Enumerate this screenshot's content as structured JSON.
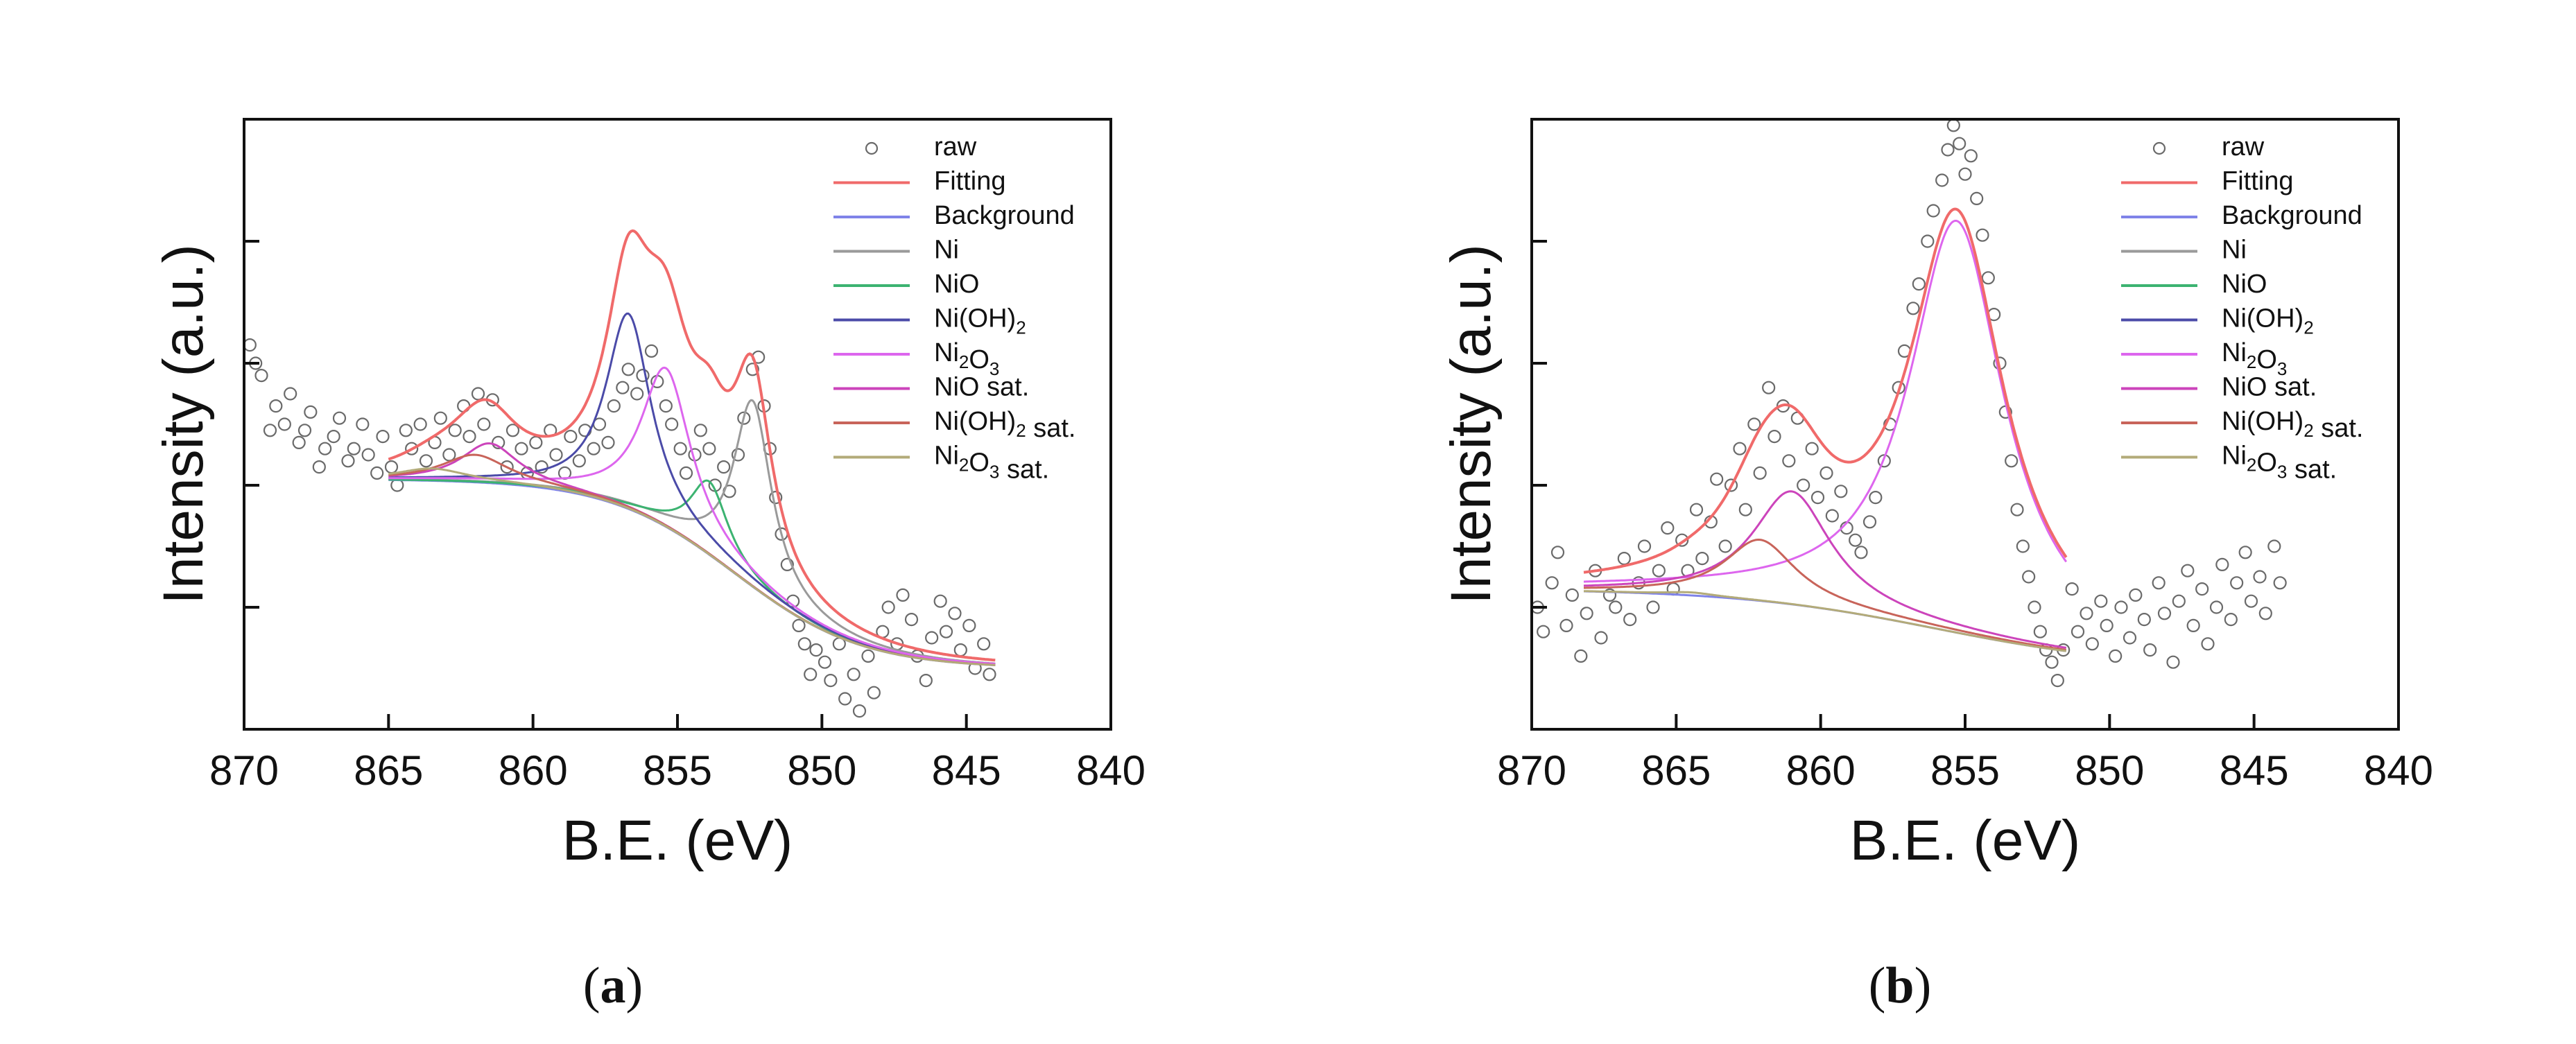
{
  "colors": {
    "axis": "#111111",
    "raw": "#6a6a6a",
    "fitting": "#f06a6a",
    "background": "#7f83e8",
    "ni": "#9a9a9a",
    "nio": "#3cb371",
    "nioh2": "#4b4ba8",
    "ni2o3": "#dd66ee",
    "nio_sat": "#cc44bb",
    "nioh2_sat": "#c8645a",
    "ni2o3_sat": "#b3ab79"
  },
  "chart_data": [
    {
      "panel_label": "a",
      "type": "line",
      "title": "",
      "xlabel": "B.E. (eV)",
      "ylabel": "Intensity (a.u.)",
      "xlim": [
        870,
        840
      ],
      "ylim": [
        0,
        10
      ],
      "xticks": [
        "870",
        "865",
        "860",
        "855",
        "850",
        "845",
        "840"
      ],
      "yticks": [
        2.0,
        4.0,
        6.0,
        8.0
      ],
      "yticks_labeled": false,
      "legend": {
        "position": "top-right",
        "entries": [
          {
            "label": "raw",
            "key": "raw",
            "kind": "marker"
          },
          {
            "label": "Fitting",
            "key": "fitting",
            "kind": "line"
          },
          {
            "label": "Background",
            "key": "background",
            "kind": "line"
          },
          {
            "label": "Ni",
            "key": "ni",
            "kind": "line"
          },
          {
            "label": "NiO",
            "key": "nio",
            "kind": "line"
          },
          {
            "label": "Ni(OH)",
            "sub": "2",
            "after": "",
            "key": "nioh2",
            "kind": "line"
          },
          {
            "label": "Ni",
            "sub": "2",
            "after": "O",
            "sub2": "3",
            "after2": "",
            "key": "ni2o3",
            "kind": "line"
          },
          {
            "label": "NiO sat.",
            "key": "nio_sat",
            "kind": "line"
          },
          {
            "label": "Ni(OH)",
            "sub": "2",
            "after": " sat.",
            "key": "nioh2_sat",
            "kind": "line"
          },
          {
            "label": "Ni",
            "sub": "2",
            "after": "O",
            "sub2": "3",
            "after2": " sat.",
            "key": "ni2o3_sat",
            "kind": "line"
          }
        ]
      },
      "fit_range": [
        865,
        844
      ],
      "background": {
        "type": "shirley",
        "high": 4.1,
        "low": 1.0,
        "center": 853.0,
        "width": 2.2
      },
      "components": [
        {
          "key": "ni",
          "center": 852.4,
          "height": 3.05,
          "fwhm": 1.6
        },
        {
          "key": "nio",
          "center": 853.9,
          "height": 1.2,
          "fwhm": 1.6
        },
        {
          "key": "nioh2",
          "center": 856.7,
          "height": 3.2,
          "fwhm": 1.9
        },
        {
          "key": "ni2o3",
          "center": 855.4,
          "height": 2.6,
          "fwhm": 2.1
        },
        {
          "key": "nio_sat",
          "center": 861.5,
          "height": 0.65,
          "fwhm": 2.4
        },
        {
          "key": "nioh2_sat",
          "center": 862.0,
          "height": 0.45,
          "fwhm": 2.8
        },
        {
          "key": "ni2o3_sat",
          "center": 863.5,
          "height": 0.2,
          "fwhm": 3.0
        }
      ],
      "raw_points": [
        [
          869.8,
          6.3
        ],
        [
          869.6,
          6.0
        ],
        [
          869.4,
          5.8
        ],
        [
          869.1,
          4.9
        ],
        [
          868.9,
          5.3
        ],
        [
          868.6,
          5.0
        ],
        [
          868.4,
          5.5
        ],
        [
          868.1,
          4.7
        ],
        [
          867.9,
          4.9
        ],
        [
          867.7,
          5.2
        ],
        [
          867.4,
          4.3
        ],
        [
          867.2,
          4.6
        ],
        [
          866.9,
          4.8
        ],
        [
          866.7,
          5.1
        ],
        [
          866.4,
          4.4
        ],
        [
          866.2,
          4.6
        ],
        [
          865.9,
          5.0
        ],
        [
          865.7,
          4.5
        ],
        [
          865.4,
          4.2
        ],
        [
          865.2,
          4.8
        ],
        [
          864.9,
          4.3
        ],
        [
          864.7,
          4.0
        ],
        [
          864.4,
          4.9
        ],
        [
          864.2,
          4.6
        ],
        [
          863.9,
          5.0
        ],
        [
          863.7,
          4.4
        ],
        [
          863.4,
          4.7
        ],
        [
          863.2,
          5.1
        ],
        [
          862.9,
          4.5
        ],
        [
          862.7,
          4.9
        ],
        [
          862.4,
          5.3
        ],
        [
          862.2,
          4.8
        ],
        [
          861.9,
          5.5
        ],
        [
          861.7,
          5.0
        ],
        [
          861.4,
          5.4
        ],
        [
          861.2,
          4.7
        ],
        [
          860.9,
          4.3
        ],
        [
          860.7,
          4.9
        ],
        [
          860.4,
          4.6
        ],
        [
          860.2,
          4.2
        ],
        [
          859.9,
          4.7
        ],
        [
          859.7,
          4.3
        ],
        [
          859.4,
          4.9
        ],
        [
          859.2,
          4.5
        ],
        [
          858.9,
          4.2
        ],
        [
          858.7,
          4.8
        ],
        [
          858.4,
          4.4
        ],
        [
          858.2,
          4.9
        ],
        [
          857.9,
          4.6
        ],
        [
          857.7,
          5.0
        ],
        [
          857.4,
          4.7
        ],
        [
          857.2,
          5.3
        ],
        [
          856.9,
          5.6
        ],
        [
          856.7,
          5.9
        ],
        [
          856.4,
          5.5
        ],
        [
          856.2,
          5.8
        ],
        [
          855.9,
          6.2
        ],
        [
          855.7,
          5.7
        ],
        [
          855.4,
          5.3
        ],
        [
          855.2,
          5.0
        ],
        [
          854.9,
          4.6
        ],
        [
          854.7,
          4.2
        ],
        [
          854.4,
          4.5
        ],
        [
          854.2,
          4.9
        ],
        [
          853.9,
          4.6
        ],
        [
          853.7,
          4.0
        ],
        [
          853.4,
          4.3
        ],
        [
          853.2,
          3.9
        ],
        [
          852.9,
          4.5
        ],
        [
          852.7,
          5.1
        ],
        [
          852.4,
          5.9
        ],
        [
          852.2,
          6.1
        ],
        [
          852.0,
          5.3
        ],
        [
          851.8,
          4.6
        ],
        [
          851.6,
          3.8
        ],
        [
          851.4,
          3.2
        ],
        [
          851.2,
          2.7
        ],
        [
          851.0,
          2.1
        ],
        [
          850.8,
          1.7
        ],
        [
          850.6,
          1.4
        ],
        [
          850.4,
          0.9
        ],
        [
          850.2,
          1.3
        ],
        [
          849.9,
          1.1
        ],
        [
          849.7,
          0.8
        ],
        [
          849.4,
          1.4
        ],
        [
          849.2,
          0.5
        ],
        [
          848.9,
          0.9
        ],
        [
          848.7,
          0.3
        ],
        [
          848.4,
          1.2
        ],
        [
          848.2,
          0.6
        ],
        [
          847.9,
          1.6
        ],
        [
          847.7,
          2.0
        ],
        [
          847.4,
          1.4
        ],
        [
          847.2,
          2.2
        ],
        [
          846.9,
          1.8
        ],
        [
          846.7,
          1.2
        ],
        [
          846.4,
          0.8
        ],
        [
          846.2,
          1.5
        ],
        [
          845.9,
          2.1
        ],
        [
          845.7,
          1.6
        ],
        [
          845.4,
          1.9
        ],
        [
          845.2,
          1.3
        ],
        [
          844.9,
          1.7
        ],
        [
          844.7,
          1.0
        ],
        [
          844.4,
          1.4
        ],
        [
          844.2,
          0.9
        ]
      ]
    },
    {
      "panel_label": "b",
      "type": "line",
      "title": "",
      "xlabel": "B.E. (eV)",
      "ylabel": "Intensity (a.u.)",
      "xlim": [
        870,
        840
      ],
      "ylim": [
        0,
        10
      ],
      "xticks": [
        "870",
        "865",
        "860",
        "855",
        "850",
        "845",
        "840"
      ],
      "yticks": [
        2.0,
        4.0,
        6.0,
        8.0
      ],
      "yticks_labeled": false,
      "legend": {
        "position": "top-right",
        "entries": [
          {
            "label": "raw",
            "key": "raw",
            "kind": "marker"
          },
          {
            "label": "Fitting",
            "key": "fitting",
            "kind": "line"
          },
          {
            "label": "Background",
            "key": "background",
            "kind": "line"
          },
          {
            "label": "Ni",
            "key": "ni",
            "kind": "line"
          },
          {
            "label": "NiO",
            "key": "nio",
            "kind": "line"
          },
          {
            "label": "Ni(OH)",
            "sub": "2",
            "after": "",
            "key": "nioh2",
            "kind": "line"
          },
          {
            "label": "Ni",
            "sub": "2",
            "after": "O",
            "sub2": "3",
            "after2": "",
            "key": "ni2o3",
            "kind": "line"
          },
          {
            "label": "NiO sat.",
            "key": "nio_sat",
            "kind": "line"
          },
          {
            "label": "Ni(OH)",
            "sub": "2",
            "after": " sat.",
            "key": "nioh2_sat",
            "kind": "line"
          },
          {
            "label": "Ni",
            "sub": "2",
            "after": "O",
            "sub2": "3",
            "after2": " sat.",
            "key": "ni2o3_sat",
            "kind": "line"
          }
        ]
      },
      "fit_range": [
        868.2,
        851.5
      ],
      "background": {
        "type": "shirley",
        "high": 2.3,
        "low": 1.0,
        "center": 856.0,
        "width": 3.5
      },
      "components": [
        {
          "key": "ni2o3",
          "center": 855.3,
          "height": 6.75,
          "fwhm": 4.0
        },
        {
          "key": "nio_sat",
          "center": 861.0,
          "height": 1.85,
          "fwhm": 3.3
        },
        {
          "key": "nioh2_sat",
          "center": 862.1,
          "height": 1.0,
          "fwhm": 3.0
        },
        {
          "key": "ni2o3_sat",
          "center": 864.5,
          "height": 0.05,
          "fwhm": 2.0
        }
      ],
      "raw_points": [
        [
          869.8,
          2.0
        ],
        [
          869.6,
          1.6
        ],
        [
          869.3,
          2.4
        ],
        [
          869.1,
          2.9
        ],
        [
          868.8,
          1.7
        ],
        [
          868.6,
          2.2
        ],
        [
          868.3,
          1.2
        ],
        [
          868.1,
          1.9
        ],
        [
          867.8,
          2.6
        ],
        [
          867.6,
          1.5
        ],
        [
          867.3,
          2.2
        ],
        [
          867.1,
          2.0
        ],
        [
          866.8,
          2.8
        ],
        [
          866.6,
          1.8
        ],
        [
          866.3,
          2.4
        ],
        [
          866.1,
          3.0
        ],
        [
          865.8,
          2.0
        ],
        [
          865.6,
          2.6
        ],
        [
          865.3,
          3.3
        ],
        [
          865.1,
          2.3
        ],
        [
          864.8,
          3.1
        ],
        [
          864.6,
          2.6
        ],
        [
          864.3,
          3.6
        ],
        [
          864.1,
          2.8
        ],
        [
          863.8,
          3.4
        ],
        [
          863.6,
          4.1
        ],
        [
          863.3,
          3.0
        ],
        [
          863.1,
          4.0
        ],
        [
          862.8,
          4.6
        ],
        [
          862.6,
          3.6
        ],
        [
          862.3,
          5.0
        ],
        [
          862.1,
          4.2
        ],
        [
          861.8,
          5.6
        ],
        [
          861.6,
          4.8
        ],
        [
          861.3,
          5.3
        ],
        [
          861.1,
          4.4
        ],
        [
          860.8,
          5.1
        ],
        [
          860.6,
          4.0
        ],
        [
          860.3,
          4.6
        ],
        [
          860.1,
          3.8
        ],
        [
          859.8,
          4.2
        ],
        [
          859.6,
          3.5
        ],
        [
          859.3,
          3.9
        ],
        [
          859.1,
          3.3
        ],
        [
          858.8,
          3.1
        ],
        [
          858.6,
          2.9
        ],
        [
          858.3,
          3.4
        ],
        [
          858.1,
          3.8
        ],
        [
          857.8,
          4.4
        ],
        [
          857.6,
          5.0
        ],
        [
          857.3,
          5.6
        ],
        [
          857.1,
          6.2
        ],
        [
          856.8,
          6.9
        ],
        [
          856.6,
          7.3
        ],
        [
          856.3,
          8.0
        ],
        [
          856.1,
          8.5
        ],
        [
          855.8,
          9.0
        ],
        [
          855.6,
          9.5
        ],
        [
          855.4,
          9.9
        ],
        [
          855.2,
          9.6
        ],
        [
          855.0,
          9.1
        ],
        [
          854.8,
          9.4
        ],
        [
          854.6,
          8.7
        ],
        [
          854.4,
          8.1
        ],
        [
          854.2,
          7.4
        ],
        [
          854.0,
          6.8
        ],
        [
          853.8,
          6.0
        ],
        [
          853.6,
          5.2
        ],
        [
          853.4,
          4.4
        ],
        [
          853.2,
          3.6
        ],
        [
          853.0,
          3.0
        ],
        [
          852.8,
          2.5
        ],
        [
          852.6,
          2.0
        ],
        [
          852.4,
          1.6
        ],
        [
          852.2,
          1.3
        ],
        [
          852.0,
          1.1
        ],
        [
          851.8,
          0.8
        ],
        [
          851.6,
          1.3
        ],
        [
          851.3,
          2.3
        ],
        [
          851.1,
          1.6
        ],
        [
          850.8,
          1.9
        ],
        [
          850.6,
          1.4
        ],
        [
          850.3,
          2.1
        ],
        [
          850.1,
          1.7
        ],
        [
          849.8,
          1.2
        ],
        [
          849.6,
          2.0
        ],
        [
          849.3,
          1.5
        ],
        [
          849.1,
          2.2
        ],
        [
          848.8,
          1.8
        ],
        [
          848.6,
          1.3
        ],
        [
          848.3,
          2.4
        ],
        [
          848.1,
          1.9
        ],
        [
          847.8,
          1.1
        ],
        [
          847.6,
          2.1
        ],
        [
          847.3,
          2.6
        ],
        [
          847.1,
          1.7
        ],
        [
          846.8,
          2.3
        ],
        [
          846.6,
          1.4
        ],
        [
          846.3,
          2.0
        ],
        [
          846.1,
          2.7
        ],
        [
          845.8,
          1.8
        ],
        [
          845.6,
          2.4
        ],
        [
          845.3,
          2.9
        ],
        [
          845.1,
          2.1
        ],
        [
          844.8,
          2.5
        ],
        [
          844.6,
          1.9
        ],
        [
          844.3,
          3.0
        ],
        [
          844.1,
          2.4
        ]
      ]
    }
  ]
}
